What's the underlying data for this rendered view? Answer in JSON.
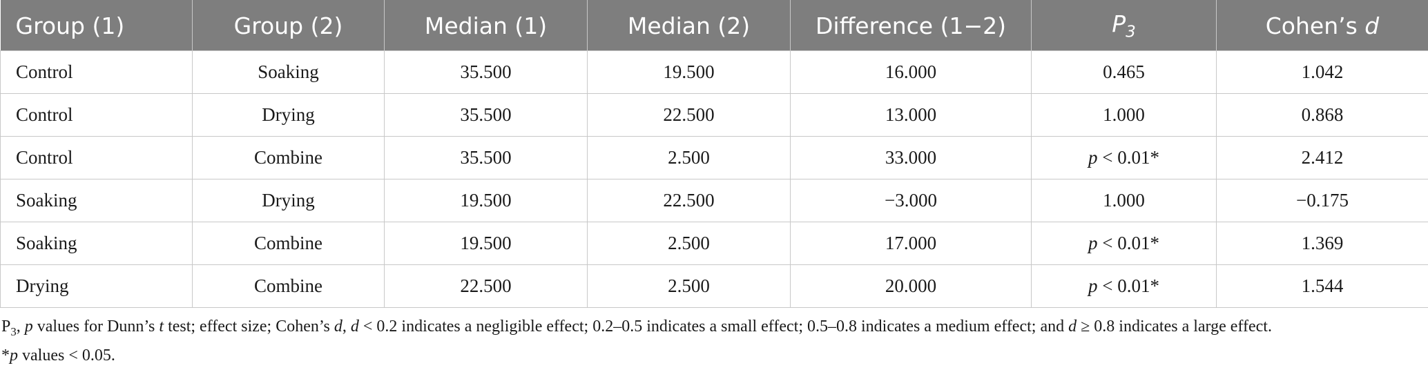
{
  "table": {
    "headers": {
      "group1": "Group (1)",
      "group2": "Group (2)",
      "median1": "Median (1)",
      "median2": "Median (2)",
      "difference": "Difference (1−2)",
      "p3_letter": "P",
      "p3_sub": "3",
      "cohen_prefix": "Cohen’s ",
      "cohen_d": "d"
    },
    "rows": [
      {
        "group1": "Control",
        "group2": "Soaking",
        "median1": "35.500",
        "median2": "19.500",
        "difference": "16.000",
        "p3": "0.465",
        "cohen": "1.042"
      },
      {
        "group1": "Control",
        "group2": "Drying",
        "median1": "35.500",
        "median2": "22.500",
        "difference": "13.000",
        "p3": "1.000",
        "cohen": "0.868"
      },
      {
        "group1": "Control",
        "group2": "Combine",
        "median1": "35.500",
        "median2": "2.500",
        "difference": "33.000",
        "p3_italic": "p",
        "p3_rest": " < 0.01*",
        "cohen": "2.412"
      },
      {
        "group1": "Soaking",
        "group2": "Drying",
        "median1": "19.500",
        "median2": "22.500",
        "difference": "−3.000",
        "p3": "1.000",
        "cohen": "−0.175"
      },
      {
        "group1": "Soaking",
        "group2": "Combine",
        "median1": "19.500",
        "median2": "2.500",
        "difference": "17.000",
        "p3_italic": "p",
        "p3_rest": " < 0.01*",
        "cohen": "1.369"
      },
      {
        "group1": "Drying",
        "group2": "Combine",
        "median1": "22.500",
        "median2": "2.500",
        "difference": "20.000",
        "p3_italic": "p",
        "p3_rest": " < 0.01*",
        "cohen": "1.544"
      }
    ]
  },
  "footnotes": {
    "line1": {
      "p_label": "P",
      "p_sub": "3",
      "comma": ", ",
      "p_italic": "p",
      "part1": " values for Dunn’s ",
      "t_italic": "t",
      "part2": " test; effect size; Cohen’s ",
      "d1": "d",
      "part3": ", ",
      "d2": "d",
      "part4": " < 0.2 indicates a negligible effect; 0.2–0.5 indicates a small effect; 0.5–0.8 indicates a medium effect; and ",
      "d3": "d",
      "part5": " ≥ 0.8 indicates a large effect."
    },
    "line2": {
      "star": "*",
      "p_italic": "p",
      "rest": " values < 0.05."
    }
  }
}
